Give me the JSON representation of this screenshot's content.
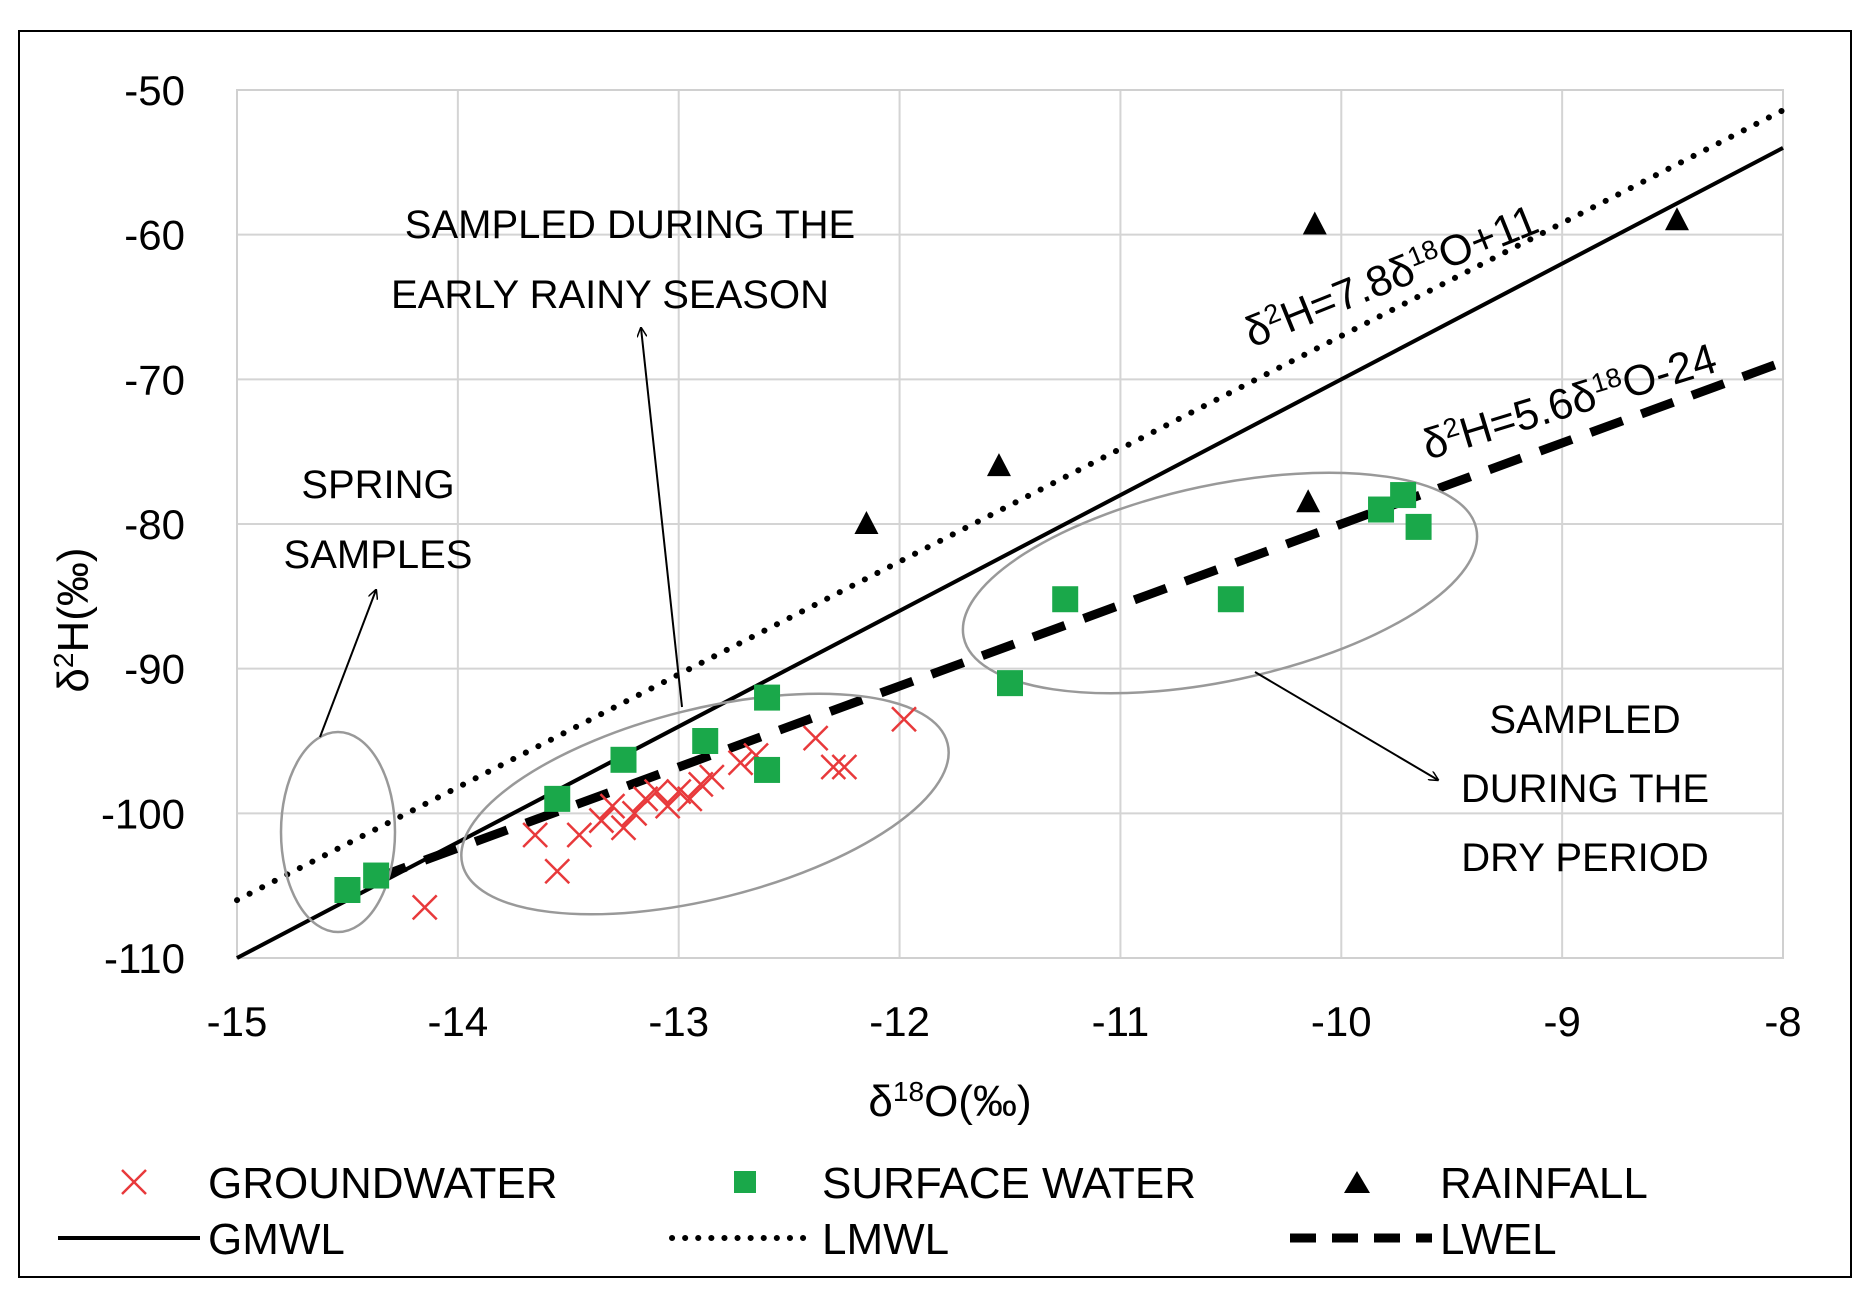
{
  "chart_data": {
    "type": "scatter",
    "xlabel": "δ18O(‰)",
    "ylabel": "δ2H(‰)",
    "xlim": [
      -15,
      -8
    ],
    "ylim": [
      -110,
      -50
    ],
    "x_ticks": [
      -15,
      -14,
      -13,
      -12,
      -11,
      -10,
      -9,
      -8
    ],
    "y_ticks": [
      -50,
      -60,
      -70,
      -80,
      -90,
      -100,
      -110
    ],
    "grid": true,
    "series": [
      {
        "name": "GROUNDWATER",
        "marker": "x",
        "color": "#e8393b",
        "points": [
          [
            -14.15,
            -106.5
          ],
          [
            -13.65,
            -101.5
          ],
          [
            -13.55,
            -104
          ],
          [
            -13.45,
            -101.5
          ],
          [
            -13.35,
            -100.5
          ],
          [
            -13.3,
            -99.5
          ],
          [
            -13.25,
            -101
          ],
          [
            -13.2,
            -100
          ],
          [
            -13.15,
            -99
          ],
          [
            -13.1,
            -98.5
          ],
          [
            -13.05,
            -99.5
          ],
          [
            -13.0,
            -98.5
          ],
          [
            -12.95,
            -99
          ],
          [
            -12.9,
            -98
          ],
          [
            -12.85,
            -97.5
          ],
          [
            -12.72,
            -96.5
          ],
          [
            -12.65,
            -96
          ],
          [
            -12.6,
            -97
          ],
          [
            -12.38,
            -94.8
          ],
          [
            -12.3,
            -96.8
          ],
          [
            -12.25,
            -96.8
          ],
          [
            -11.98,
            -93.5
          ]
        ]
      },
      {
        "name": "SURFACE WATER",
        "marker": "square",
        "color": "#1aa84a",
        "points": [
          [
            -14.5,
            -105.3
          ],
          [
            -14.37,
            -104.3
          ],
          [
            -13.55,
            -99
          ],
          [
            -13.25,
            -96.3
          ],
          [
            -12.88,
            -95
          ],
          [
            -12.6,
            -92
          ],
          [
            -12.6,
            -97
          ],
          [
            -11.5,
            -91
          ],
          [
            -11.25,
            -85.2
          ],
          [
            -10.5,
            -85.2
          ],
          [
            -9.82,
            -79
          ],
          [
            -9.72,
            -78
          ],
          [
            -9.65,
            -80.2
          ]
        ]
      },
      {
        "name": "RAINFALL",
        "marker": "triangle",
        "color": "#000000",
        "points": [
          [
            -12.15,
            -80
          ],
          [
            -11.55,
            -76
          ],
          [
            -10.12,
            -59.3
          ],
          [
            -10.15,
            -78.5
          ],
          [
            -8.48,
            -59
          ]
        ]
      }
    ],
    "lines": [
      {
        "name": "GMWL",
        "style": "solid",
        "slope": 8,
        "intercept": 10
      },
      {
        "name": "LMWL",
        "style": "dotted",
        "slope": 7.8,
        "intercept": 11
      },
      {
        "name": "LWEL",
        "style": "dashed",
        "slope": 5.6,
        "intercept": -24
      }
    ],
    "annotations": {
      "lmwl_eq": {
        "a": "δ",
        "b": "2",
        "c": "H=7.8δ",
        "d": "18",
        "e": "O+11"
      },
      "lwel_eq": {
        "a": "δ",
        "b": "2",
        "c": "H=5.6δ",
        "d": "18",
        "e": "O-24"
      },
      "early_rainy": [
        "SAMPLED DURING THE",
        "EARLY RAINY SEASON"
      ],
      "spring": [
        "SPRING",
        "SAMPLES"
      ],
      "dry": [
        "SAMPLED",
        "DURING THE",
        "DRY PERIOD"
      ]
    },
    "legend": {
      "placement": "bottom",
      "entries": [
        "GROUNDWATER",
        "SURFACE WATER",
        "RAINFALL",
        "GMWL",
        "LMWL",
        "LWEL"
      ]
    }
  },
  "axis_titles": {
    "x_main": "δ",
    "x_sup": "18",
    "x_rest": "O(‰)",
    "y_main": "δ",
    "y_sup": "2",
    "y_rest": "H(‰)"
  }
}
